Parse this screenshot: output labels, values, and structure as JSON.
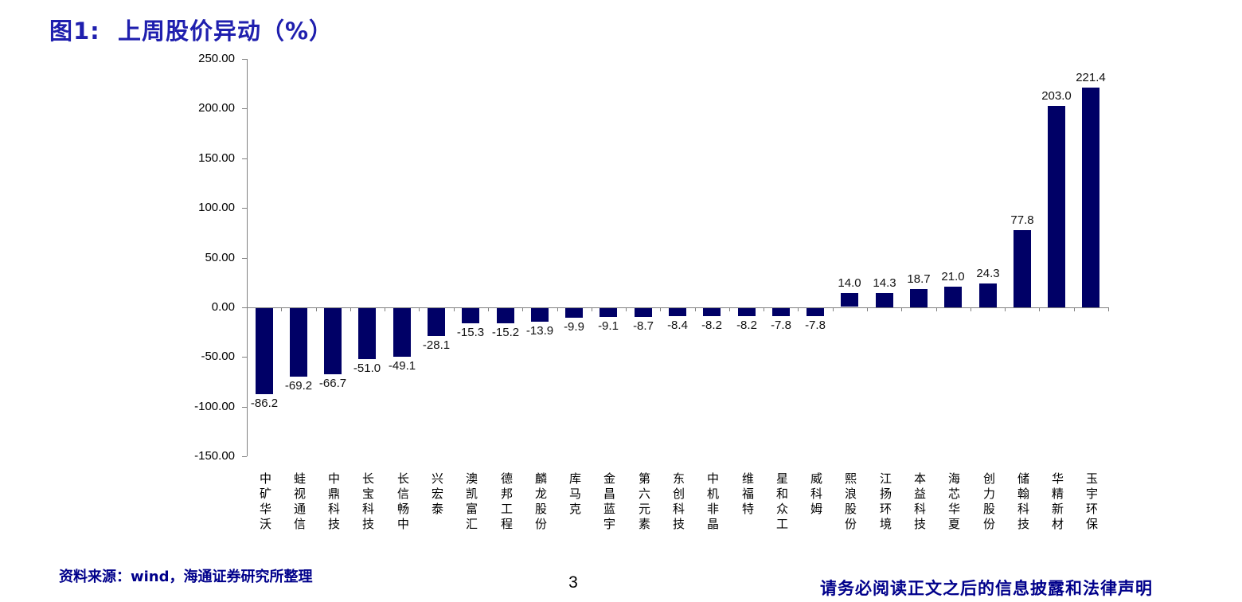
{
  "page": {
    "title": "图1:  上周股价异动（%）",
    "source_note": "资料来源：wind，海通证券研究所整理",
    "page_number": "3",
    "disclaimer": "请务必阅读正文之后的信息披露和法律声明"
  },
  "colors": {
    "bar": "#000066",
    "title_blue": "#1f1fae",
    "footer_blue": "#00008B",
    "axis_gray": "#808080"
  },
  "chart_data": {
    "type": "bar",
    "title": "上周股价异动（%）",
    "categories": [
      "中矿华沃",
      "蛙视通信",
      "中鼎科技",
      "长宝科技",
      "长信畅中",
      "兴宏泰",
      "澳凯富汇",
      "德邦工程",
      "麟龙股份",
      "库马克",
      "金昌蓝宇",
      "第六元素",
      "东创科技",
      "中机非晶",
      "维福特",
      "星和众工",
      "威科姆",
      "熙浪股份",
      "江扬环境",
      "本益科技",
      "海芯华夏",
      "创力股份",
      "储翰科技",
      "华精新材",
      "玉宇环保"
    ],
    "values": [
      -86.2,
      -69.2,
      -66.7,
      -51.0,
      -49.1,
      -28.1,
      -15.3,
      -15.2,
      -13.9,
      -9.9,
      -9.1,
      -8.7,
      -8.4,
      -8.2,
      -8.2,
      -7.8,
      -7.8,
      14.0,
      14.3,
      18.7,
      21.0,
      24.3,
      77.8,
      203.0,
      221.4
    ],
    "value_labels": [
      "-86.2",
      "-69.2",
      "-66.7",
      "-51.0",
      "-49.1",
      "-28.1",
      "-15.3",
      "-15.2",
      "-13.9",
      "-9.9",
      "-9.1",
      "-8.7",
      "-8.4",
      "-8.2",
      "-8.2",
      "-7.8",
      "-7.8",
      "14.0",
      "14.3",
      "18.7",
      "21.0",
      "24.3",
      "77.8",
      "203.0",
      "221.4"
    ],
    "ylim": [
      -150,
      250
    ],
    "yticks": [
      250,
      200,
      150,
      100,
      50,
      0,
      -50,
      -100,
      -150
    ],
    "ytick_labels": [
      "250.00",
      "200.00",
      "150.00",
      "100.00",
      "50.00",
      "0.00",
      "-50.00",
      "-100.00",
      "-150.00"
    ],
    "grid": false,
    "legend": false,
    "bar_color": "#000066",
    "xlabel": "",
    "ylabel": ""
  }
}
